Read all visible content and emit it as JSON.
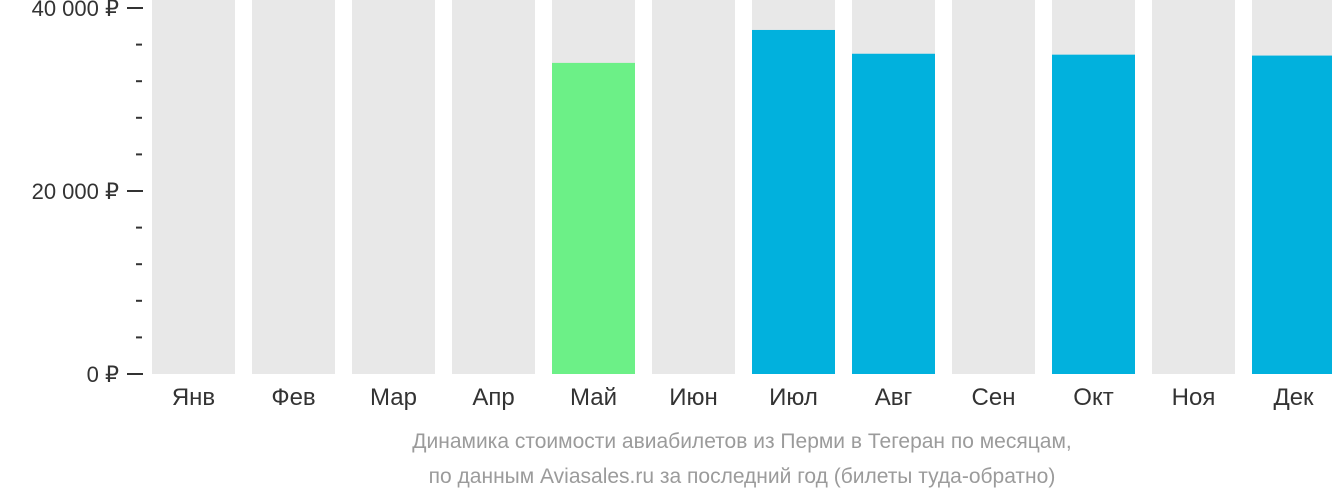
{
  "chart_data": {
    "type": "bar",
    "categories": [
      "Янв",
      "Фев",
      "Мар",
      "Апр",
      "Май",
      "Июн",
      "Июл",
      "Авг",
      "Сен",
      "Окт",
      "Ноя",
      "Дек"
    ],
    "values": [
      null,
      null,
      null,
      null,
      34000,
      null,
      37600,
      35000,
      null,
      34900,
      null,
      34800
    ],
    "bar_colors": [
      "#e8e8e8",
      "#e8e8e8",
      "#e8e8e8",
      "#e8e8e8",
      "#6cf087",
      "#e8e8e8",
      "#01b1dd",
      "#01b1dd",
      "#e8e8e8",
      "#01b1dd",
      "#e8e8e8",
      "#01b1dd"
    ],
    "background_bar_color": "#e8e8e8",
    "ylim": [
      0,
      40000
    ],
    "y_ticks": [
      {
        "value": 40000,
        "label": "40 000 ₽"
      },
      {
        "value": 20000,
        "label": "20 000 ₽"
      },
      {
        "value": 0,
        "label": "0 ₽"
      }
    ],
    "y_minor_step": 4000,
    "grid": false,
    "caption_line1": "Динамика стоимости авиабилетов из Перми в Тегеран по месяцам,",
    "caption_line2": "по данным Aviasales.ru за последний год (билеты туда-обратно)"
  }
}
